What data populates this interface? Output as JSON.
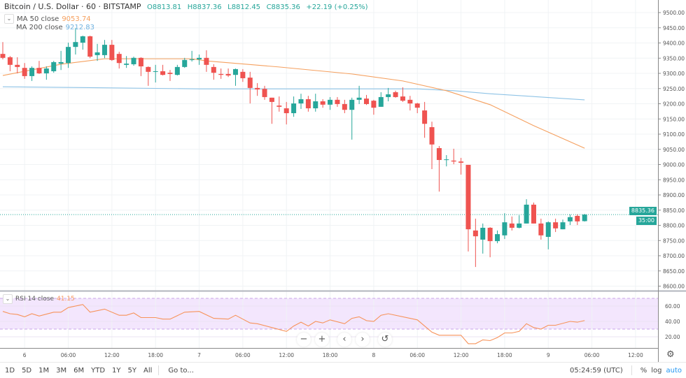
{
  "header": {
    "title": "Bitcoin / U.S. Dollar · 60 · BITSTAMP",
    "open": "O8813.81",
    "high": "H8837.36",
    "low": "L8812.45",
    "close": "C8835.36",
    "change": "+22.19 (+0.25%)"
  },
  "ma50": {
    "label": "MA 50 close",
    "value": "9053.74",
    "color": "#f5a05f"
  },
  "ma200": {
    "label": "MA 200 close",
    "value": "9212.83",
    "color": "#8ec3e6"
  },
  "rsi": {
    "label": "RSI 14 close",
    "value": "41.15",
    "color": "#f7935a",
    "band": [
      30,
      70
    ]
  },
  "last_price_label": "8835.36",
  "countdown_label": "35:00",
  "zoom_controls": {
    "zoom_out": "−",
    "zoom_in": "+",
    "back": "‹",
    "forward": "›",
    "reset": "↺"
  },
  "bottom_bar": {
    "ranges": [
      "1D",
      "5D",
      "1M",
      "3M",
      "6M",
      "YTD",
      "1Y",
      "5Y",
      "All"
    ],
    "goto": "Go to...",
    "clock": "05:24:59 (UTC)",
    "percent": "%",
    "log": "log",
    "auto": "auto"
  },
  "colors": {
    "up": "#26a69a",
    "down": "#ef5350"
  },
  "chart_data": {
    "type": "candlestick",
    "interval": "60",
    "ylim": [
      8580,
      9520
    ],
    "price_ticks": [
      9500,
      9450,
      9400,
      9350,
      9300,
      9250,
      9200,
      9150,
      9100,
      9050,
      9000,
      8950,
      8900,
      8850,
      8800,
      8750,
      8700,
      8650,
      8600
    ],
    "rsi_ticks": [
      "60.00",
      "40.00",
      "20.00"
    ],
    "rsi_tick_values": [
      60,
      40,
      20
    ],
    "x_ticks": [
      {
        "t": "6 00:00",
        "label": "6"
      },
      {
        "t": "6 06:00",
        "label": "06:00"
      },
      {
        "t": "6 12:00",
        "label": "12:00"
      },
      {
        "t": "6 18:00",
        "label": "18:00"
      },
      {
        "t": "7 00:00",
        "label": "7"
      },
      {
        "t": "7 06:00",
        "label": "06:00"
      },
      {
        "t": "7 12:00",
        "label": "12:00"
      },
      {
        "t": "7 18:00",
        "label": "18:00"
      },
      {
        "t": "8 00:00",
        "label": "8"
      },
      {
        "t": "8 06:00",
        "label": "06:00"
      },
      {
        "t": "8 12:00",
        "label": "12:00"
      },
      {
        "t": "8 18:00",
        "label": "18:00"
      },
      {
        "t": "9 00:00",
        "label": "9"
      },
      {
        "t": "9 06:00",
        "label": "06:00"
      },
      {
        "t": "9 12:00",
        "label": "12:00"
      }
    ],
    "candles_columns": [
      "time",
      "open",
      "high",
      "low",
      "close"
    ],
    "candles": [
      [
        "5 21:00",
        9364,
        9403,
        9346,
        9351
      ],
      [
        "5 22:00",
        9353,
        9357,
        9307,
        9328
      ],
      [
        "5 23:00",
        9328,
        9353,
        9300,
        9321
      ],
      [
        "6 00:00",
        9318,
        9334,
        9282,
        9291
      ],
      [
        "6 01:00",
        9291,
        9323,
        9275,
        9318
      ],
      [
        "6 02:00",
        9318,
        9341,
        9298,
        9300
      ],
      [
        "6 03:00",
        9300,
        9323,
        9279,
        9316
      ],
      [
        "6 04:00",
        9307,
        9341,
        9302,
        9337
      ],
      [
        "6 05:00",
        9332,
        9374,
        9311,
        9337
      ],
      [
        "6 06:00",
        9334,
        9401,
        9318,
        9387
      ],
      [
        "6 07:00",
        9387,
        9449,
        9362,
        9403
      ],
      [
        "6 08:00",
        9401,
        9424,
        9378,
        9422
      ],
      [
        "6 09:00",
        9422,
        9424,
        9350,
        9355
      ],
      [
        "6 10:00",
        9360,
        9397,
        9341,
        9369
      ],
      [
        "6 11:00",
        9360,
        9410,
        9350,
        9394
      ],
      [
        "6 12:00",
        9394,
        9410,
        9341,
        9344
      ],
      [
        "6 13:00",
        9364,
        9371,
        9316,
        9334
      ],
      [
        "6 14:00",
        9328,
        9357,
        9318,
        9332
      ],
      [
        "6 15:00",
        9330,
        9355,
        9325,
        9351
      ],
      [
        "6 16:00",
        9351,
        9353,
        9291,
        9323
      ],
      [
        "6 17:00",
        9321,
        9323,
        9259,
        9305
      ],
      [
        "6 18:00",
        9305,
        9328,
        9270,
        9307
      ],
      [
        "6 19:00",
        9307,
        9328,
        9293,
        9295
      ],
      [
        "6 20:00",
        9302,
        9311,
        9275,
        9298
      ],
      [
        "6 21:00",
        9295,
        9328,
        9293,
        9321
      ],
      [
        "6 22:00",
        9321,
        9351,
        9318,
        9344
      ],
      [
        "6 23:00",
        9345,
        9374,
        9339,
        9346
      ],
      [
        "7 00:00",
        9346,
        9362,
        9328,
        9351
      ],
      [
        "7 01:00",
        9351,
        9376,
        9305,
        9328
      ],
      [
        "7 02:00",
        9321,
        9330,
        9279,
        9302
      ],
      [
        "7 03:00",
        9298,
        9316,
        9282,
        9295
      ],
      [
        "7 04:00",
        9298,
        9316,
        9288,
        9293
      ],
      [
        "7 05:00",
        9295,
        9316,
        9259,
        9314
      ],
      [
        "7 06:00",
        9305,
        9314,
        9272,
        9284
      ],
      [
        "7 07:00",
        9286,
        9305,
        9201,
        9252
      ],
      [
        "7 08:00",
        9252,
        9268,
        9226,
        9247
      ],
      [
        "7 09:00",
        9249,
        9259,
        9213,
        9222
      ],
      [
        "7 10:00",
        9220,
        9220,
        9134,
        9206
      ],
      [
        "7 11:00",
        9194,
        9224,
        9174,
        9190
      ],
      [
        "7 12:00",
        9185,
        9206,
        9132,
        9169
      ],
      [
        "7 13:00",
        9169,
        9224,
        9157,
        9201
      ],
      [
        "7 14:00",
        9201,
        9233,
        9183,
        9215
      ],
      [
        "7 15:00",
        9215,
        9226,
        9174,
        9185
      ],
      [
        "7 16:00",
        9185,
        9233,
        9174,
        9208
      ],
      [
        "7 17:00",
        9208,
        9215,
        9187,
        9197
      ],
      [
        "7 18:00",
        9197,
        9222,
        9180,
        9213
      ],
      [
        "7 19:00",
        9213,
        9222,
        9190,
        9199
      ],
      [
        "7 20:00",
        9199,
        9213,
        9169,
        9180
      ],
      [
        "7 21:00",
        9180,
        9220,
        9082,
        9213
      ],
      [
        "7 22:00",
        9213,
        9259,
        9199,
        9220
      ],
      [
        "7 23:00",
        9217,
        9229,
        9196,
        9199
      ],
      [
        "8 00:00",
        9210,
        9213,
        9164,
        9187
      ],
      [
        "8 01:00",
        9190,
        9238,
        9190,
        9222
      ],
      [
        "8 02:00",
        9222,
        9252,
        9208,
        9231
      ],
      [
        "8 03:00",
        9238,
        9243,
        9220,
        9222
      ],
      [
        "8 04:00",
        9224,
        9254,
        9206,
        9210
      ],
      [
        "8 05:00",
        9213,
        9226,
        9178,
        9201
      ],
      [
        "8 06:00",
        9201,
        9203,
        9169,
        9187
      ],
      [
        "8 07:00",
        9178,
        9206,
        9088,
        9134
      ],
      [
        "8 08:00",
        9123,
        9141,
        8985,
        9066
      ],
      [
        "8 09:00",
        9054,
        9061,
        8911,
        9015
      ],
      [
        "8 10:00",
        9016,
        9031,
        8994,
        9017
      ],
      [
        "8 11:00",
        9013,
        9052,
        9001,
        9010
      ],
      [
        "8 12:00",
        9010,
        9022,
        8967,
        9006
      ],
      [
        "8 13:00",
        8999,
        8999,
        8714,
        8787
      ],
      [
        "8 14:00",
        8783,
        8822,
        8663,
        8764
      ],
      [
        "8 15:00",
        8753,
        8806,
        8707,
        8792
      ],
      [
        "8 16:00",
        8792,
        8794,
        8695,
        8748
      ],
      [
        "8 17:00",
        8748,
        8783,
        8741,
        8771
      ],
      [
        "8 18:00",
        8767,
        8840,
        8755,
        8810
      ],
      [
        "8 19:00",
        8806,
        8829,
        8783,
        8792
      ],
      [
        "8 20:00",
        8792,
        8833,
        8790,
        8806
      ],
      [
        "8 21:00",
        8806,
        8886,
        8806,
        8868
      ],
      [
        "8 22:00",
        8868,
        8875,
        8806,
        8806
      ],
      [
        "8 23:00",
        8806,
        8822,
        8753,
        8767
      ],
      [
        "9 00:00",
        8762,
        8813,
        8721,
        8810
      ],
      [
        "9 01:00",
        8810,
        8822,
        8778,
        8790
      ],
      [
        "9 02:00",
        8787,
        8819,
        8787,
        8810
      ],
      [
        "9 03:00",
        8813,
        8836,
        8801,
        8827
      ],
      [
        "9 04:00",
        8831,
        8836,
        8801,
        8813
      ],
      [
        "9 05:00",
        8813.81,
        8837.36,
        8812.45,
        8835.36
      ]
    ],
    "ma50_points": [
      [
        "5 21:00",
        9293
      ],
      [
        "6 05:00",
        9330
      ],
      [
        "6 11:00",
        9348
      ],
      [
        "6 23:00",
        9348
      ],
      [
        "7 01:00",
        9341
      ],
      [
        "7 11:00",
        9321
      ],
      [
        "7 21:00",
        9298
      ],
      [
        "8 04:00",
        9275
      ],
      [
        "8 10:00",
        9243
      ],
      [
        "8 16:00",
        9197
      ],
      [
        "8 22:00",
        9128
      ],
      [
        "9 05:00",
        9053.74
      ]
    ],
    "ma200_points": [
      [
        "5 21:00",
        9256
      ],
      [
        "7 00:00",
        9249
      ],
      [
        "8 06:00",
        9249
      ],
      [
        "8 11:00",
        9243
      ],
      [
        "8 16:00",
        9233
      ],
      [
        "9 05:00",
        9212.83
      ]
    ],
    "rsi_points": [
      [
        "5 21:00",
        53
      ],
      [
        "5 22:00",
        50
      ],
      [
        "5 23:00",
        49
      ],
      [
        "6 00:00",
        46
      ],
      [
        "6 01:00",
        50
      ],
      [
        "6 02:00",
        47
      ],
      [
        "6 04:00",
        52
      ],
      [
        "6 05:00",
        52
      ],
      [
        "6 06:00",
        58
      ],
      [
        "6 08:00",
        62
      ],
      [
        "6 09:00",
        52
      ],
      [
        "6 11:00",
        56
      ],
      [
        "6 13:00",
        48
      ],
      [
        "6 14:00",
        48
      ],
      [
        "6 15:00",
        51
      ],
      [
        "6 16:00",
        45
      ],
      [
        "6 18:00",
        45
      ],
      [
        "6 19:00",
        43
      ],
      [
        "6 20:00",
        43
      ],
      [
        "6 22:00",
        52
      ],
      [
        "7 00:00",
        53
      ],
      [
        "7 02:00",
        44
      ],
      [
        "7 04:00",
        43
      ],
      [
        "7 05:00",
        48
      ],
      [
        "7 07:00",
        38
      ],
      [
        "7 08:00",
        37
      ],
      [
        "7 10:00",
        32
      ],
      [
        "7 12:00",
        27
      ],
      [
        "7 13:00",
        34
      ],
      [
        "7 14:00",
        39
      ],
      [
        "7 15:00",
        34
      ],
      [
        "7 16:00",
        40
      ],
      [
        "7 17:00",
        38
      ],
      [
        "7 18:00",
        42
      ],
      [
        "7 20:00",
        37
      ],
      [
        "7 21:00",
        44
      ],
      [
        "7 22:00",
        46
      ],
      [
        "7 23:00",
        41
      ],
      [
        "8 00:00",
        40
      ],
      [
        "8 01:00",
        48
      ],
      [
        "8 02:00",
        50
      ],
      [
        "8 06:00",
        42
      ],
      [
        "8 08:00",
        26
      ],
      [
        "8 09:00",
        22
      ],
      [
        "8 12:00",
        22
      ],
      [
        "8 13:00",
        11
      ],
      [
        "8 14:00",
        11
      ],
      [
        "8 15:00",
        16
      ],
      [
        "8 16:00",
        15
      ],
      [
        "8 17:00",
        19
      ],
      [
        "8 18:00",
        25
      ],
      [
        "8 19:00",
        25
      ],
      [
        "8 20:00",
        27
      ],
      [
        "8 21:00",
        37
      ],
      [
        "8 22:00",
        32
      ],
      [
        "8 23:00",
        30
      ],
      [
        "9 00:00",
        35
      ],
      [
        "9 01:00",
        35
      ],
      [
        "9 03:00",
        40
      ],
      [
        "9 04:00",
        39
      ],
      [
        "9 05:00",
        41.15
      ]
    ],
    "last_price": 8835.36,
    "grid": true
  }
}
